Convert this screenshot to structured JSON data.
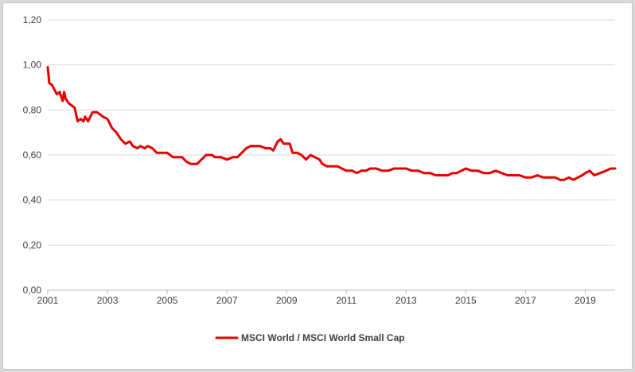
{
  "chart_data": {
    "type": "line",
    "title": "",
    "xlabel": "",
    "ylabel": "",
    "x_range": [
      2001,
      2020
    ],
    "ylim": [
      0,
      1.2
    ],
    "y_ticks": [
      0.0,
      0.2,
      0.4,
      0.6,
      0.8,
      1.0,
      1.2
    ],
    "y_tick_labels": [
      "0,00",
      "0,20",
      "0,40",
      "0,60",
      "0,80",
      "1,00",
      "1,20"
    ],
    "x_ticks": [
      2001,
      2003,
      2005,
      2007,
      2009,
      2011,
      2013,
      2015,
      2017,
      2019
    ],
    "x_tick_labels": [
      "2001",
      "2003",
      "2005",
      "2007",
      "2009",
      "2011",
      "2013",
      "2015",
      "2017",
      "2019"
    ],
    "grid": "horizontal",
    "legend_position": "bottom",
    "series": [
      {
        "name": "MSCI World / MSCI World Small Cap",
        "color": "#e60000",
        "x": [
          2001.0,
          2001.05,
          2001.15,
          2001.3,
          2001.4,
          2001.5,
          2001.55,
          2001.6,
          2001.65,
          2001.7,
          2001.8,
          2001.9,
          2002.0,
          2002.1,
          2002.2,
          2002.25,
          2002.35,
          2002.5,
          2002.6,
          2002.65,
          2002.75,
          2002.85,
          2003.0,
          2003.15,
          2003.3,
          2003.45,
          2003.6,
          2003.75,
          2003.85,
          2004.0,
          2004.1,
          2004.25,
          2004.35,
          2004.5,
          2004.65,
          2004.8,
          2005.0,
          2005.2,
          2005.35,
          2005.5,
          2005.65,
          2005.8,
          2006.0,
          2006.15,
          2006.3,
          2006.5,
          2006.6,
          2006.8,
          2007.0,
          2007.2,
          2007.35,
          2007.5,
          2007.65,
          2007.8,
          2007.9,
          2008.1,
          2008.3,
          2008.45,
          2008.55,
          2008.7,
          2008.8,
          2008.9,
          2009.0,
          2009.1,
          2009.2,
          2009.35,
          2009.5,
          2009.65,
          2009.8,
          2009.95,
          2010.1,
          2010.2,
          2010.35,
          2010.5,
          2010.7,
          2010.85,
          2011.0,
          2011.2,
          2011.35,
          2011.5,
          2011.65,
          2011.8,
          2012.0,
          2012.2,
          2012.4,
          2012.6,
          2012.8,
          2013.0,
          2013.2,
          2013.4,
          2013.6,
          2013.8,
          2014.0,
          2014.2,
          2014.4,
          2014.55,
          2014.7,
          2014.85,
          2015.0,
          2015.2,
          2015.4,
          2015.6,
          2015.8,
          2016.0,
          2016.2,
          2016.4,
          2016.6,
          2016.8,
          2017.0,
          2017.2,
          2017.4,
          2017.6,
          2017.8,
          2018.0,
          2018.15,
          2018.3,
          2018.45,
          2018.6,
          2018.75,
          2018.9,
          2019.0,
          2019.15,
          2019.3,
          2019.5,
          2019.7,
          2019.85,
          2020.0
        ],
        "y": [
          0.99,
          0.92,
          0.91,
          0.87,
          0.88,
          0.84,
          0.88,
          0.85,
          0.84,
          0.83,
          0.82,
          0.81,
          0.75,
          0.76,
          0.75,
          0.77,
          0.75,
          0.79,
          0.79,
          0.79,
          0.78,
          0.77,
          0.76,
          0.72,
          0.7,
          0.67,
          0.65,
          0.66,
          0.64,
          0.63,
          0.64,
          0.63,
          0.64,
          0.63,
          0.61,
          0.61,
          0.61,
          0.59,
          0.59,
          0.59,
          0.57,
          0.56,
          0.56,
          0.58,
          0.6,
          0.6,
          0.59,
          0.59,
          0.58,
          0.59,
          0.59,
          0.61,
          0.63,
          0.64,
          0.64,
          0.64,
          0.63,
          0.63,
          0.62,
          0.66,
          0.67,
          0.65,
          0.65,
          0.65,
          0.61,
          0.61,
          0.6,
          0.58,
          0.6,
          0.59,
          0.58,
          0.56,
          0.55,
          0.55,
          0.55,
          0.54,
          0.53,
          0.53,
          0.52,
          0.53,
          0.53,
          0.54,
          0.54,
          0.53,
          0.53,
          0.54,
          0.54,
          0.54,
          0.53,
          0.53,
          0.52,
          0.52,
          0.51,
          0.51,
          0.51,
          0.52,
          0.52,
          0.53,
          0.54,
          0.53,
          0.53,
          0.52,
          0.52,
          0.53,
          0.52,
          0.51,
          0.51,
          0.51,
          0.5,
          0.5,
          0.51,
          0.5,
          0.5,
          0.5,
          0.49,
          0.49,
          0.5,
          0.49,
          0.5,
          0.51,
          0.52,
          0.53,
          0.51,
          0.52,
          0.53,
          0.54,
          0.54
        ]
      }
    ]
  }
}
